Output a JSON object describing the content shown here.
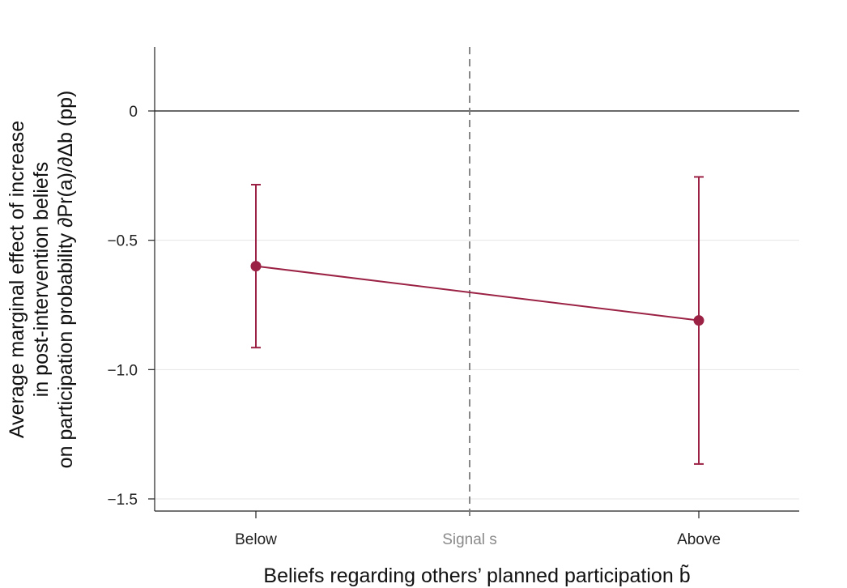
{
  "chart_data": {
    "type": "line",
    "categories": [
      "Below",
      "Above"
    ],
    "xlabel": "Beliefs regarding others’ planned participation b̃",
    "ylabel_lines": [
      "Average marginal effect of increase",
      "in post-intervention beliefs",
      "on participation probability ∂Pr(a)/∂Δb (pp)"
    ],
    "ylim": [
      -1.55,
      0.25
    ],
    "yticks": [
      0,
      -0.5,
      -1.0,
      -1.5
    ],
    "ytick_labels": [
      "0",
      "−0.5",
      "−1.0",
      "−1.5"
    ],
    "grid": true,
    "reference_line_y": 0,
    "vertical_reference": {
      "label": "Signal s",
      "x_position": 0.5
    },
    "series": [
      {
        "values": [
          -0.6,
          -0.81
        ],
        "ci_lower": [
          -0.915,
          -1.365
        ],
        "ci_upper": [
          -0.285,
          -0.255
        ],
        "color": "#9b2244"
      }
    ]
  }
}
